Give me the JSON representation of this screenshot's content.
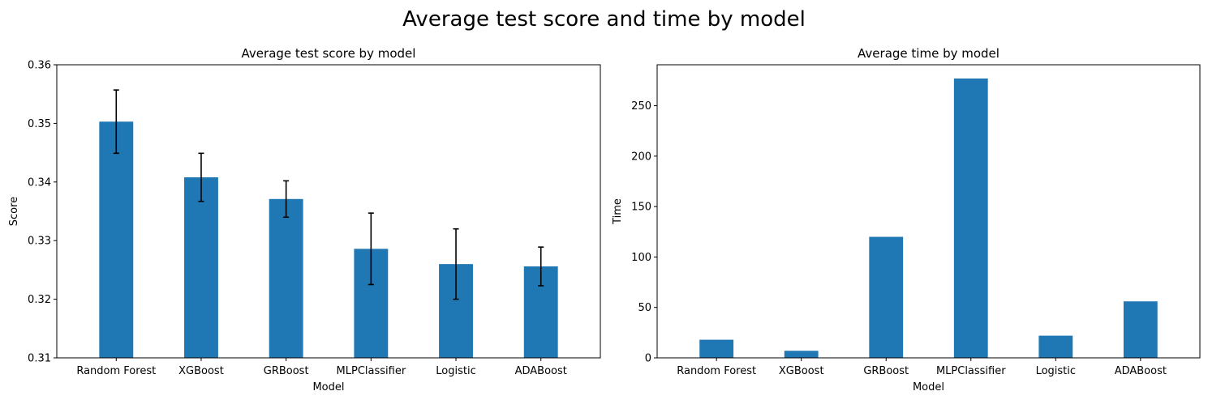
{
  "figure": {
    "title": "Average test score and time by model"
  },
  "chart_data": [
    {
      "type": "bar",
      "title": "Average test score by model",
      "xlabel": "Model",
      "ylabel": "Score",
      "categories": [
        "Random Forest",
        "XGBoost",
        "GRBoost",
        "MLPClassifier",
        "Logistic",
        "ADABoost"
      ],
      "values": [
        0.3503,
        0.3408,
        0.3371,
        0.3286,
        0.326,
        0.3256
      ],
      "errors": [
        0.0054,
        0.0041,
        0.0031,
        0.0061,
        0.006,
        0.0033
      ],
      "ylim": [
        0.31,
        0.36
      ],
      "yticks": [
        0.31,
        0.32,
        0.33,
        0.34,
        0.35,
        0.36
      ],
      "ytick_labels": [
        "0.31",
        "0.32",
        "0.33",
        "0.34",
        "0.35",
        "0.36"
      ],
      "color": "#1f77b4",
      "error_color": "#000000",
      "grid": false
    },
    {
      "type": "bar",
      "title": "Average time by model",
      "xlabel": "Model",
      "ylabel": "Time",
      "categories": [
        "Random Forest",
        "XGBoost",
        "GRBoost",
        "MLPClassifier",
        "Logistic",
        "ADABoost"
      ],
      "values": [
        18,
        7,
        120,
        277,
        22,
        56
      ],
      "ylim": [
        0,
        290.6
      ],
      "yticks": [
        0,
        50,
        100,
        150,
        200,
        250
      ],
      "ytick_labels": [
        "0",
        "50",
        "100",
        "150",
        "200",
        "250"
      ],
      "color": "#1f77b4",
      "grid": false
    }
  ]
}
